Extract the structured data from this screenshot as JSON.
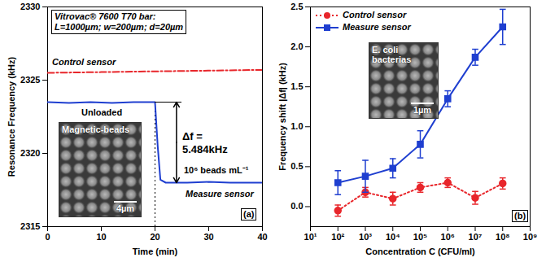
{
  "chart_data": [
    {
      "type": "line",
      "panel": "(a)",
      "xlabel": "Time (min)",
      "ylabel": "Resonance Frequency (kHz)",
      "xlim": [
        0,
        40
      ],
      "xticks": [
        0,
        10,
        20,
        30,
        40
      ],
      "ylim": [
        2315,
        2330
      ],
      "yticks": [
        2315,
        2320,
        2325,
        2330
      ],
      "series": [
        {
          "name": "Control sensor",
          "color": "#e8262b",
          "line_style": "dashdot",
          "x": [
            0,
            10,
            20,
            30,
            40
          ],
          "values": [
            2325.5,
            2325.55,
            2325.6,
            2325.65,
            2325.7
          ]
        },
        {
          "name": "Measure sensor",
          "color": "#1f3fd0",
          "line_style": "solid",
          "x": [
            0,
            4,
            8,
            12,
            16,
            20,
            20.5,
            21,
            22,
            26,
            30,
            34,
            40
          ],
          "values": [
            2323.5,
            2323.45,
            2323.5,
            2323.45,
            2323.5,
            2323.5,
            2320.5,
            2318.2,
            2318.0,
            2318.0,
            2318.05,
            2318.0,
            2318.0
          ]
        }
      ],
      "annotations": {
        "box": [
          "Vitrovac® 7600 T70 bar:",
          "L=1000µm; w=200µm; d=20µm"
        ],
        "unloaded": "Unloaded",
        "shift": [
          "Δf =",
          "5.484kHz"
        ],
        "load": "10⁶ beads mL⁻¹"
      },
      "inset": {
        "label": "Magnetic-beads",
        "scale_bar": "4µm"
      }
    },
    {
      "type": "line",
      "panel": "(b)",
      "xlabel": "Concentration C (CFU/ml)",
      "ylabel": "Frequency shift |Δf| (kHz)",
      "log": "x",
      "xlim": [
        10,
        1000000000
      ],
      "xticks": [
        {
          "value": 10,
          "label": "10¹"
        },
        {
          "value": 100,
          "label": "10²"
        },
        {
          "value": 1000,
          "label": "10³"
        },
        {
          "value": 10000,
          "label": "10⁴"
        },
        {
          "value": 100000,
          "label": "10⁵"
        },
        {
          "value": 1000000,
          "label": "10⁶"
        },
        {
          "value": 10000000,
          "label": "10⁷"
        },
        {
          "value": 100000000,
          "label": "10⁸"
        },
        {
          "value": 1000000000,
          "label": "10⁹"
        }
      ],
      "ylim": [
        -0.25,
        2.5
      ],
      "yticks": [
        {
          "value": 0,
          "label": "0.0"
        },
        0.5,
        {
          "value": 1,
          "label": "1.0"
        },
        1.5,
        {
          "value": 2,
          "label": "2.0"
        },
        2.5
      ],
      "legend": "top-left",
      "x": [
        100,
        1000,
        10000,
        100000,
        1000000,
        10000000,
        100000000
      ],
      "series": [
        {
          "name": "Control sensor",
          "color": "#e8262b",
          "marker": "circle",
          "line_style": "dotted",
          "values": [
            -0.05,
            0.18,
            0.1,
            0.24,
            0.3,
            0.11,
            0.29
          ],
          "errors": [
            0.07,
            0.06,
            0.08,
            0.06,
            0.06,
            0.08,
            0.07
          ]
        },
        {
          "name": "Measure sensor",
          "color": "#1f3fd0",
          "marker": "square",
          "line_style": "solid",
          "values": [
            0.3,
            0.38,
            0.48,
            0.78,
            1.35,
            1.87,
            2.25
          ],
          "errors": [
            0.15,
            0.2,
            0.12,
            0.17,
            0.1,
            0.1,
            0.22
          ]
        }
      ],
      "inset": {
        "label": "E. coli bacterias",
        "scale_bar": "1µm"
      }
    }
  ]
}
